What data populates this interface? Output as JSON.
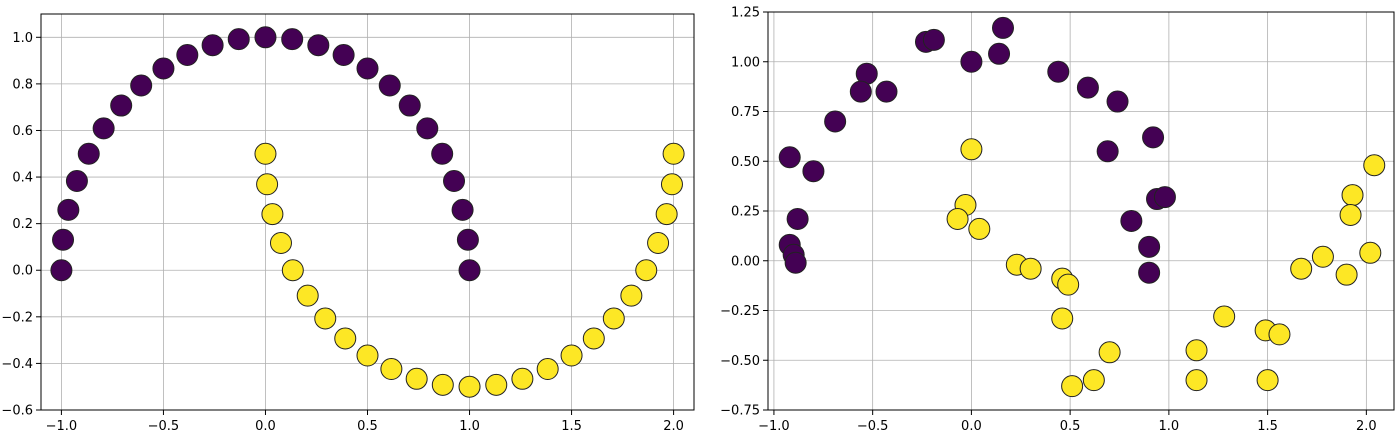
{
  "chart_data": [
    {
      "type": "scatter",
      "title": "",
      "xlabel": "",
      "ylabel": "",
      "xlim": [
        -1.1,
        2.1
      ],
      "ylim": [
        -0.6,
        1.1
      ],
      "grid": true,
      "legend": "none",
      "xticks": [
        -1.0,
        -0.5,
        0.0,
        0.5,
        1.0,
        1.5,
        2.0
      ],
      "xtick_labels": [
        "−1.0",
        "−0.5",
        "0.0",
        "0.5",
        "1.0",
        "1.5",
        "2.0"
      ],
      "yticks": [
        -0.6,
        -0.4,
        -0.2,
        0.0,
        0.2,
        0.4,
        0.6,
        0.8,
        1.0
      ],
      "ytick_labels": [
        "−0.6",
        "−0.4",
        "−0.2",
        "0.0",
        "0.2",
        "0.4",
        "0.6",
        "0.8",
        "1.0"
      ],
      "classes": [
        {
          "class": 0,
          "color": "#440154"
        },
        {
          "class": 1,
          "color": "#fde725"
        }
      ],
      "points": [
        {
          "x": 1.0,
          "y": 0.0,
          "class": 0
        },
        {
          "x": 0.992,
          "y": 0.131,
          "class": 0
        },
        {
          "x": 0.966,
          "y": 0.259,
          "class": 0
        },
        {
          "x": 0.924,
          "y": 0.383,
          "class": 0
        },
        {
          "x": 0.866,
          "y": 0.5,
          "class": 0
        },
        {
          "x": 0.793,
          "y": 0.609,
          "class": 0
        },
        {
          "x": 0.707,
          "y": 0.707,
          "class": 0
        },
        {
          "x": 0.609,
          "y": 0.793,
          "class": 0
        },
        {
          "x": 0.5,
          "y": 0.866,
          "class": 0
        },
        {
          "x": 0.383,
          "y": 0.924,
          "class": 0
        },
        {
          "x": 0.259,
          "y": 0.966,
          "class": 0
        },
        {
          "x": 0.131,
          "y": 0.992,
          "class": 0
        },
        {
          "x": 0.0,
          "y": 1.0,
          "class": 0
        },
        {
          "x": -0.131,
          "y": 0.992,
          "class": 0
        },
        {
          "x": -0.259,
          "y": 0.966,
          "class": 0
        },
        {
          "x": -0.383,
          "y": 0.924,
          "class": 0
        },
        {
          "x": -0.5,
          "y": 0.866,
          "class": 0
        },
        {
          "x": -0.609,
          "y": 0.793,
          "class": 0
        },
        {
          "x": -0.707,
          "y": 0.707,
          "class": 0
        },
        {
          "x": -0.793,
          "y": 0.609,
          "class": 0
        },
        {
          "x": -0.866,
          "y": 0.5,
          "class": 0
        },
        {
          "x": -0.924,
          "y": 0.383,
          "class": 0
        },
        {
          "x": -0.966,
          "y": 0.259,
          "class": 0
        },
        {
          "x": -0.992,
          "y": 0.131,
          "class": 0
        },
        {
          "x": -1.0,
          "y": 0.0,
          "class": 0
        },
        {
          "x": 0.0,
          "y": 0.5,
          "class": 1
        },
        {
          "x": 0.008,
          "y": 0.369,
          "class": 1
        },
        {
          "x": 0.034,
          "y": 0.241,
          "class": 1
        },
        {
          "x": 0.076,
          "y": 0.117,
          "class": 1
        },
        {
          "x": 0.134,
          "y": 0.0,
          "class": 1
        },
        {
          "x": 0.207,
          "y": -0.109,
          "class": 1
        },
        {
          "x": 0.293,
          "y": -0.207,
          "class": 1
        },
        {
          "x": 0.391,
          "y": -0.293,
          "class": 1
        },
        {
          "x": 0.5,
          "y": -0.366,
          "class": 1
        },
        {
          "x": 0.617,
          "y": -0.424,
          "class": 1
        },
        {
          "x": 0.741,
          "y": -0.466,
          "class": 1
        },
        {
          "x": 0.869,
          "y": -0.492,
          "class": 1
        },
        {
          "x": 1.0,
          "y": -0.5,
          "class": 1
        },
        {
          "x": 1.131,
          "y": -0.492,
          "class": 1
        },
        {
          "x": 1.259,
          "y": -0.466,
          "class": 1
        },
        {
          "x": 1.383,
          "y": -0.424,
          "class": 1
        },
        {
          "x": 1.5,
          "y": -0.366,
          "class": 1
        },
        {
          "x": 1.609,
          "y": -0.293,
          "class": 1
        },
        {
          "x": 1.707,
          "y": -0.207,
          "class": 1
        },
        {
          "x": 1.793,
          "y": -0.109,
          "class": 1
        },
        {
          "x": 1.866,
          "y": 0.0,
          "class": 1
        },
        {
          "x": 1.924,
          "y": 0.117,
          "class": 1
        },
        {
          "x": 1.966,
          "y": 0.241,
          "class": 1
        },
        {
          "x": 1.992,
          "y": 0.369,
          "class": 1
        },
        {
          "x": 2.0,
          "y": 0.5,
          "class": 1
        }
      ]
    },
    {
      "type": "scatter",
      "title": "",
      "xlabel": "",
      "ylabel": "",
      "xlim": [
        -1.03,
        2.14
      ],
      "ylim": [
        -0.75,
        1.25
      ],
      "grid": true,
      "legend": "none",
      "xticks": [
        -1.0,
        -0.5,
        0.0,
        0.5,
        1.0,
        1.5,
        2.0
      ],
      "xtick_labels": [
        "−1.0",
        "−0.5",
        "0.0",
        "0.5",
        "1.0",
        "1.5",
        "2.0"
      ],
      "yticks": [
        -0.75,
        -0.5,
        -0.25,
        0.0,
        0.25,
        0.5,
        0.75,
        1.0,
        1.25
      ],
      "ytick_labels": [
        "−0.75",
        "−0.50",
        "−0.25",
        "0.00",
        "0.25",
        "0.50",
        "0.75",
        "1.00",
        "1.25"
      ],
      "classes": [
        {
          "class": 0,
          "color": "#440154"
        },
        {
          "class": 1,
          "color": "#fde725"
        }
      ],
      "points": [
        {
          "x": -0.23,
          "y": 1.1,
          "class": 0
        },
        {
          "x": -0.19,
          "y": 1.11,
          "class": 0
        },
        {
          "x": 0.16,
          "y": 1.17,
          "class": 0
        },
        {
          "x": 0.14,
          "y": 1.04,
          "class": 0
        },
        {
          "x": 0.0,
          "y": 1.0,
          "class": 0
        },
        {
          "x": -0.53,
          "y": 0.94,
          "class": 0
        },
        {
          "x": -0.56,
          "y": 0.85,
          "class": 0
        },
        {
          "x": -0.43,
          "y": 0.85,
          "class": 0
        },
        {
          "x": -0.69,
          "y": 0.7,
          "class": 0
        },
        {
          "x": -0.92,
          "y": 0.52,
          "class": 0
        },
        {
          "x": -0.8,
          "y": 0.45,
          "class": 0
        },
        {
          "x": -0.88,
          "y": 0.21,
          "class": 0
        },
        {
          "x": -0.92,
          "y": 0.08,
          "class": 0
        },
        {
          "x": -0.9,
          "y": 0.03,
          "class": 0
        },
        {
          "x": -0.89,
          "y": -0.01,
          "class": 0
        },
        {
          "x": 0.44,
          "y": 0.95,
          "class": 0
        },
        {
          "x": 0.59,
          "y": 0.87,
          "class": 0
        },
        {
          "x": 0.74,
          "y": 0.8,
          "class": 0
        },
        {
          "x": 0.92,
          "y": 0.62,
          "class": 0
        },
        {
          "x": 0.69,
          "y": 0.55,
          "class": 0
        },
        {
          "x": 0.94,
          "y": 0.31,
          "class": 0
        },
        {
          "x": 0.98,
          "y": 0.32,
          "class": 0
        },
        {
          "x": 0.81,
          "y": 0.2,
          "class": 0
        },
        {
          "x": 0.9,
          "y": 0.07,
          "class": 0
        },
        {
          "x": 0.9,
          "y": -0.06,
          "class": 0
        },
        {
          "x": 0.0,
          "y": 0.56,
          "class": 1
        },
        {
          "x": -0.03,
          "y": 0.28,
          "class": 1
        },
        {
          "x": -0.07,
          "y": 0.21,
          "class": 1
        },
        {
          "x": 0.04,
          "y": 0.16,
          "class": 1
        },
        {
          "x": 0.23,
          "y": -0.02,
          "class": 1
        },
        {
          "x": 0.3,
          "y": -0.04,
          "class": 1
        },
        {
          "x": 0.46,
          "y": -0.09,
          "class": 1
        },
        {
          "x": 0.49,
          "y": -0.12,
          "class": 1
        },
        {
          "x": 0.46,
          "y": -0.29,
          "class": 1
        },
        {
          "x": 0.7,
          "y": -0.46,
          "class": 1
        },
        {
          "x": 0.51,
          "y": -0.63,
          "class": 1
        },
        {
          "x": 0.62,
          "y": -0.6,
          "class": 1
        },
        {
          "x": 1.14,
          "y": -0.45,
          "class": 1
        },
        {
          "x": 1.14,
          "y": -0.6,
          "class": 1
        },
        {
          "x": 1.28,
          "y": -0.28,
          "class": 1
        },
        {
          "x": 1.49,
          "y": -0.35,
          "class": 1
        },
        {
          "x": 1.56,
          "y": -0.37,
          "class": 1
        },
        {
          "x": 1.5,
          "y": -0.6,
          "class": 1
        },
        {
          "x": 1.67,
          "y": -0.04,
          "class": 1
        },
        {
          "x": 1.78,
          "y": 0.02,
          "class": 1
        },
        {
          "x": 1.9,
          "y": -0.07,
          "class": 1
        },
        {
          "x": 1.93,
          "y": 0.33,
          "class": 1
        },
        {
          "x": 1.92,
          "y": 0.23,
          "class": 1
        },
        {
          "x": 2.02,
          "y": 0.04,
          "class": 1
        },
        {
          "x": 2.04,
          "y": 0.48,
          "class": 1
        }
      ]
    }
  ]
}
